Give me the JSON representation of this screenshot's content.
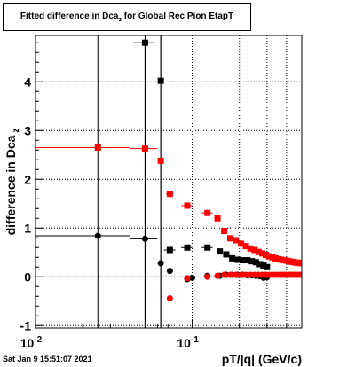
{
  "chart_data": {
    "type": "scatter",
    "title": {
      "main": "Fitted difference in Dca",
      "sub": "z",
      "suffix": " for Global Rec Pion EtapT"
    },
    "xlabel": "pT/|q| (GeV/c)",
    "ylabel": {
      "main": "difference in Dca",
      "sub": "z"
    },
    "x_scale": "log",
    "xlim": [
      0.01,
      0.5
    ],
    "ylim": [
      -1.05,
      4.95
    ],
    "x_tick_labels": [
      {
        "base": "10",
        "exp": "-2",
        "value": 0.01
      },
      {
        "base": "10",
        "exp": "-1",
        "value": 0.1
      }
    ],
    "y_ticks": [
      -1,
      0,
      1,
      2,
      3,
      4
    ],
    "grid": true,
    "series": [
      {
        "color": "#000000",
        "marker": "square",
        "points": [
          {
            "x": 0.05,
            "y": 4.8,
            "xlo": 0.042,
            "xhi": 0.058,
            "ylo": -1.05,
            "yhi": 4.95
          },
          {
            "x": 0.063,
            "y": 4.02,
            "xlo": 0.062,
            "xhi": 0.064,
            "ylo": -1.05,
            "yhi": 4.95
          },
          {
            "x": 0.072,
            "y": 0.55,
            "xlo": 0.066,
            "xhi": 0.078
          },
          {
            "x": 0.093,
            "y": 0.6,
            "xlo": 0.085,
            "xhi": 0.1
          },
          {
            "x": 0.125,
            "y": 0.6,
            "xlo": 0.115,
            "xhi": 0.135
          },
          {
            "x": 0.15,
            "y": 0.52
          },
          {
            "x": 0.165,
            "y": 0.46
          },
          {
            "x": 0.18,
            "y": 0.38
          },
          {
            "x": 0.195,
            "y": 0.35
          },
          {
            "x": 0.21,
            "y": 0.34
          },
          {
            "x": 0.225,
            "y": 0.34
          },
          {
            "x": 0.24,
            "y": 0.32
          },
          {
            "x": 0.255,
            "y": 0.3
          },
          {
            "x": 0.27,
            "y": 0.26
          },
          {
            "x": 0.285,
            "y": 0.23
          },
          {
            "x": 0.3,
            "y": 0.2
          }
        ]
      },
      {
        "color": "#000000",
        "marker": "circle",
        "points": [
          {
            "x": 0.025,
            "y": 0.84,
            "xlo": 0.01,
            "xhi": 0.04,
            "ylo": -1.05,
            "yhi": 4.95
          },
          {
            "x": 0.05,
            "y": 0.78,
            "xlo": 0.04,
            "xhi": 0.06,
            "ylo": -1.05,
            "yhi": 4.95
          },
          {
            "x": 0.063,
            "y": 0.28,
            "xlo": 0.061,
            "xhi": 0.065,
            "ylo": -1.05,
            "yhi": 4.95
          },
          {
            "x": 0.072,
            "y": 0.12
          },
          {
            "x": 0.093,
            "y": -0.05
          },
          {
            "x": 0.1,
            "y": -0.02
          },
          {
            "x": 0.125,
            "y": 0.02
          },
          {
            "x": 0.15,
            "y": 0.02
          },
          {
            "x": 0.165,
            "y": 0.04
          },
          {
            "x": 0.18,
            "y": 0.04
          },
          {
            "x": 0.195,
            "y": 0.04
          },
          {
            "x": 0.21,
            "y": 0.04
          },
          {
            "x": 0.225,
            "y": 0.03
          },
          {
            "x": 0.24,
            "y": 0.03
          },
          {
            "x": 0.255,
            "y": 0.02
          },
          {
            "x": 0.27,
            "y": 0.01
          },
          {
            "x": 0.285,
            "y": -0.02
          },
          {
            "x": 0.3,
            "y": -0.01
          }
        ]
      },
      {
        "color": "#ff0000",
        "marker": "square",
        "points": [
          {
            "x": 0.025,
            "y": 2.65,
            "xlo": 0.01,
            "xhi": 0.04
          },
          {
            "x": 0.05,
            "y": 2.63,
            "xlo": 0.04,
            "xhi": 0.06
          },
          {
            "x": 0.063,
            "y": 2.38
          },
          {
            "x": 0.072,
            "y": 1.7,
            "xlo": 0.068,
            "xhi": 0.076
          },
          {
            "x": 0.093,
            "y": 1.46,
            "xlo": 0.085,
            "xhi": 0.1
          },
          {
            "x": 0.125,
            "y": 1.31,
            "xlo": 0.115,
            "xhi": 0.135
          },
          {
            "x": 0.145,
            "y": 1.2
          },
          {
            "x": 0.16,
            "y": 0.94
          },
          {
            "x": 0.175,
            "y": 0.79
          },
          {
            "x": 0.19,
            "y": 0.75
          },
          {
            "x": 0.205,
            "y": 0.68
          },
          {
            "x": 0.22,
            "y": 0.63
          },
          {
            "x": 0.235,
            "y": 0.58
          },
          {
            "x": 0.25,
            "y": 0.55
          },
          {
            "x": 0.265,
            "y": 0.51
          },
          {
            "x": 0.28,
            "y": 0.48
          },
          {
            "x": 0.295,
            "y": 0.45
          },
          {
            "x": 0.31,
            "y": 0.42
          },
          {
            "x": 0.325,
            "y": 0.4
          },
          {
            "x": 0.34,
            "y": 0.38
          },
          {
            "x": 0.355,
            "y": 0.36
          },
          {
            "x": 0.37,
            "y": 0.35
          },
          {
            "x": 0.385,
            "y": 0.34
          },
          {
            "x": 0.4,
            "y": 0.33
          },
          {
            "x": 0.415,
            "y": 0.32
          },
          {
            "x": 0.43,
            "y": 0.31
          },
          {
            "x": 0.445,
            "y": 0.3
          },
          {
            "x": 0.46,
            "y": 0.29
          },
          {
            "x": 0.475,
            "y": 0.29
          },
          {
            "x": 0.49,
            "y": 0.28
          }
        ]
      },
      {
        "color": "#ff0000",
        "marker": "circle",
        "points": [
          {
            "x": 0.072,
            "y": -0.44
          },
          {
            "x": 0.093,
            "y": -0.03
          },
          {
            "x": 0.125,
            "y": 0.0
          },
          {
            "x": 0.145,
            "y": 0.02
          },
          {
            "x": 0.16,
            "y": 0.04
          },
          {
            "x": 0.175,
            "y": 0.04
          },
          {
            "x": 0.19,
            "y": 0.04
          },
          {
            "x": 0.205,
            "y": 0.04
          },
          {
            "x": 0.22,
            "y": 0.04
          },
          {
            "x": 0.235,
            "y": 0.04
          },
          {
            "x": 0.25,
            "y": 0.04
          },
          {
            "x": 0.265,
            "y": 0.04
          },
          {
            "x": 0.28,
            "y": 0.04
          },
          {
            "x": 0.295,
            "y": 0.04
          },
          {
            "x": 0.31,
            "y": 0.04
          },
          {
            "x": 0.325,
            "y": 0.04
          },
          {
            "x": 0.34,
            "y": 0.04
          },
          {
            "x": 0.355,
            "y": 0.04
          },
          {
            "x": 0.37,
            "y": 0.04
          },
          {
            "x": 0.385,
            "y": 0.04
          },
          {
            "x": 0.4,
            "y": 0.04
          },
          {
            "x": 0.415,
            "y": 0.04
          },
          {
            "x": 0.43,
            "y": 0.04
          },
          {
            "x": 0.445,
            "y": 0.04
          },
          {
            "x": 0.46,
            "y": 0.04
          },
          {
            "x": 0.475,
            "y": 0.04
          },
          {
            "x": 0.49,
            "y": 0.04
          }
        ]
      }
    ]
  },
  "timestamp": "Sat Jan  9 15:51:07 2021"
}
